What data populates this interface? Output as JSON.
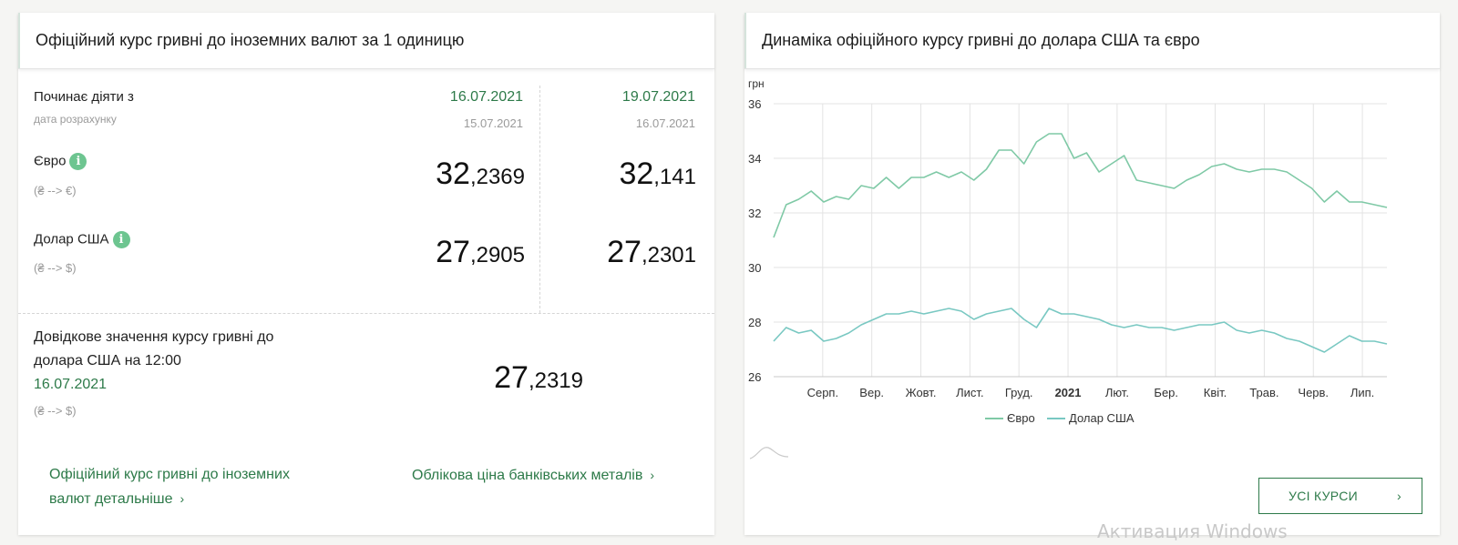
{
  "left": {
    "title": "Офіційний курс гривні до іноземних валют за 1 одиницю",
    "starts_label": "Починає діяти з",
    "calc_label": "дата розрахунку",
    "col1": {
      "date": "16.07.2021",
      "calc_date": "15.07.2021",
      "eur_int": "32",
      "eur_frac": ",2369",
      "usd_int": "27",
      "usd_frac": ",2905"
    },
    "col2": {
      "date": "19.07.2021",
      "calc_date": "16.07.2021",
      "eur_int": "32",
      "eur_frac": ",141",
      "usd_int": "27",
      "usd_frac": ",2301"
    },
    "eur_label": "Євро",
    "eur_pair": "(₴ --> €)",
    "usd_label": "Долар США",
    "usd_pair": "(₴ --> $)",
    "info_glyph": "i",
    "reference": {
      "line1": "Довідкове значення курсу гривні до",
      "line2": "долара США на 12:00",
      "date": "16.07.2021",
      "pair": "(₴ --> $)",
      "value_int": "27",
      "value_frac": ",2319"
    },
    "links": {
      "details_line1": "Офіційний курс гривні до іноземних",
      "details_line2": "валют детальніше",
      "metals": "Облікова ціна банківських металів",
      "chevron": "›"
    }
  },
  "right": {
    "title": "Динаміка офіційного курсу гривні до долара США та євро",
    "button_label": "УСІ КУРСИ",
    "button_chevron": "›"
  },
  "chart_data": {
    "type": "line",
    "ylabel": "грн",
    "ylim": [
      26,
      36
    ],
    "yticks": [
      26,
      28,
      30,
      32,
      34,
      36
    ],
    "x_tick_labels": [
      "Серп.",
      "Вер.",
      "Жовт.",
      "Лист.",
      "Груд.",
      "2021",
      "Лют.",
      "Бер.",
      "Квіт.",
      "Трав.",
      "Черв.",
      "Лип."
    ],
    "x_index_range": [
      0,
      50
    ],
    "x_tick_index": [
      4,
      8,
      12,
      16,
      20,
      24,
      28,
      32,
      36,
      40,
      44,
      48
    ],
    "grid": true,
    "legend_position": "bottom",
    "series": [
      {
        "name": "Євро",
        "color": "#7fc9a6",
        "values": [
          31.1,
          32.3,
          32.5,
          32.8,
          32.4,
          32.6,
          32.5,
          33.0,
          32.9,
          33.3,
          32.9,
          33.3,
          33.3,
          33.5,
          33.3,
          33.5,
          33.2,
          33.6,
          34.3,
          34.3,
          33.8,
          34.6,
          34.9,
          34.9,
          34.0,
          34.2,
          33.5,
          33.8,
          34.1,
          33.2,
          33.1,
          33.0,
          32.9,
          33.2,
          33.4,
          33.7,
          33.8,
          33.6,
          33.5,
          33.6,
          33.6,
          33.5,
          33.2,
          32.9,
          32.4,
          32.8,
          32.4,
          32.4,
          32.3,
          32.2
        ]
      },
      {
        "name": "Долар США",
        "color": "#79c8c2",
        "values": [
          27.3,
          27.8,
          27.6,
          27.7,
          27.3,
          27.4,
          27.6,
          27.9,
          28.1,
          28.3,
          28.3,
          28.4,
          28.3,
          28.4,
          28.5,
          28.4,
          28.1,
          28.3,
          28.4,
          28.5,
          28.1,
          27.8,
          28.5,
          28.3,
          28.3,
          28.2,
          28.1,
          27.9,
          27.8,
          27.9,
          27.8,
          27.8,
          27.7,
          27.8,
          27.9,
          27.9,
          28.0,
          27.7,
          27.6,
          27.7,
          27.6,
          27.4,
          27.3,
          27.1,
          26.9,
          27.2,
          27.5,
          27.3,
          27.3,
          27.2
        ]
      }
    ]
  }
}
